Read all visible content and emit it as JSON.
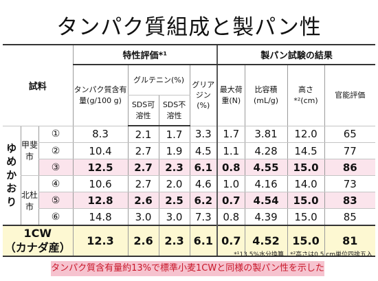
{
  "title": "タンパク質組成と製パン性",
  "table": {
    "header_sample": "試料",
    "group_properties": "特性評価*¹",
    "group_baking": "製パン試験の結果",
    "col_protein": "タンパク質含有量(g/100 g)",
    "col_glutenin": "グルテニン(%)",
    "col_gliadin": "グリアジン(%)",
    "col_max_load": "最大荷重(N)",
    "col_specific_volume": "比容積(mL/g)",
    "col_height": "高さ*²(cm)",
    "col_sensory": "官能評価",
    "sub_sds_soluble": "SDS可溶性",
    "sub_sds_insoluble": "SDS不溶性",
    "variety": "ゆめかおり",
    "location_1": "甲斐市",
    "location_2": "北杜市",
    "rows": [
      {
        "id": "①",
        "protein": "8.3",
        "sds_sol": "2.1",
        "sds_insol": "1.7",
        "gliadin": "3.3",
        "max_load": "1.7",
        "spec_vol": "3.81",
        "height": "12.0",
        "sensory": "65"
      },
      {
        "id": "②",
        "protein": "10.4",
        "sds_sol": "2.7",
        "sds_insol": "1.9",
        "gliadin": "4.5",
        "max_load": "1.1",
        "spec_vol": "4.28",
        "height": "14.5",
        "sensory": "77"
      },
      {
        "id": "③",
        "protein": "12.5",
        "sds_sol": "2.7",
        "sds_insol": "2.3",
        "gliadin": "6.1",
        "max_load": "0.8",
        "spec_vol": "4.55",
        "height": "15.0",
        "sensory": "86"
      },
      {
        "id": "④",
        "protein": "10.6",
        "sds_sol": "2.7",
        "sds_insol": "2.0",
        "gliadin": "4.6",
        "max_load": "1.0",
        "spec_vol": "4.16",
        "height": "14.0",
        "sensory": "73"
      },
      {
        "id": "⑤",
        "protein": "12.8",
        "sds_sol": "2.6",
        "sds_insol": "2.5",
        "gliadin": "6.2",
        "max_load": "0.7",
        "spec_vol": "4.54",
        "height": "15.0",
        "sensory": "83"
      },
      {
        "id": "⑥",
        "protein": "14.8",
        "sds_sol": "3.0",
        "sds_insol": "3.0",
        "gliadin": "7.3",
        "max_load": "0.8",
        "spec_vol": "4.39",
        "height": "15.0",
        "sensory": "85"
      }
    ],
    "standard": {
      "label_1": "1CW",
      "label_2": "（カナダ産）",
      "protein": "12.3",
      "sds_sol": "2.6",
      "sds_insol": "2.3",
      "gliadin": "6.1",
      "max_load": "0.7",
      "spec_vol": "4.52",
      "height": "15.0",
      "sensory": "81"
    }
  },
  "footnote": "*¹13.5%水分換算　*²高さは0.5 cm単位四捨五入",
  "summary": "タンパク質含有量約13%で標準小麦1CWと同様の製パン性を示した"
}
